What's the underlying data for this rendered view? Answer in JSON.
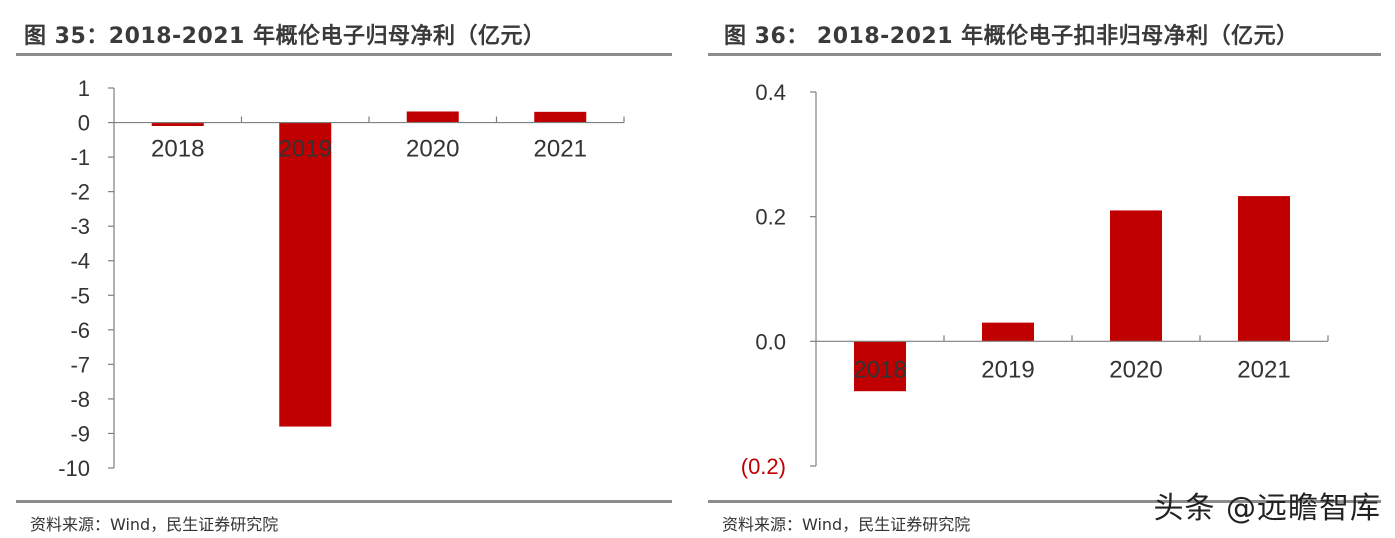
{
  "colors": {
    "bar": "#c00000",
    "axis": "#7f7f7f",
    "text": "#333333",
    "negative_tick": "#c00000",
    "rule": "#8c8c8c"
  },
  "watermark": "头条 @远瞻智库",
  "chart_data": [
    {
      "type": "bar",
      "title": "图 35：2018-2021 年概伦电子归母净利（亿元）",
      "categories": [
        "2018",
        "2019",
        "2020",
        "2021"
      ],
      "values": [
        -0.1,
        -8.8,
        0.32,
        0.31
      ],
      "ylim": [
        -10,
        1
      ],
      "yticks": [
        1,
        0,
        -1,
        -2,
        -3,
        -4,
        -5,
        -6,
        -7,
        -8,
        -9,
        -10
      ],
      "ytick_labels": [
        "1",
        "0",
        "-1",
        "-2",
        "-3",
        "-4",
        "-5",
        "-6",
        "-7",
        "-8",
        "-9",
        "-10"
      ],
      "xlabel": "",
      "ylabel": "",
      "grid": false,
      "source": "资料来源：Wind，民生证券研究院"
    },
    {
      "type": "bar",
      "title": "图 36： 2018-2021 年概伦电子扣非归母净利（亿元）",
      "categories": [
        "2018",
        "2019",
        "2020",
        "2021"
      ],
      "values": [
        -0.08,
        0.03,
        0.21,
        0.233
      ],
      "ylim": [
        -0.2,
        0.4
      ],
      "yticks": [
        0.4,
        0.2,
        0.0,
        -0.2
      ],
      "ytick_labels": [
        "0.4",
        "0.2",
        "0.0",
        "(0.2)"
      ],
      "xlabel": "",
      "ylabel": "",
      "grid": false,
      "source": "资料来源：Wind，民生证券研究院"
    }
  ]
}
